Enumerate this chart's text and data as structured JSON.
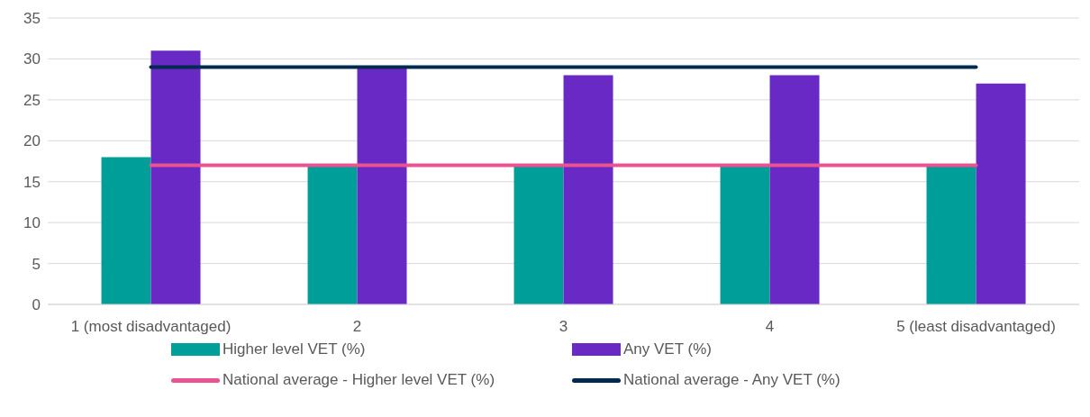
{
  "chart_data": {
    "type": "bar",
    "categories": [
      "1 (most disadvantaged)",
      "2",
      "3",
      "4",
      "5 (least disadvantaged)"
    ],
    "series": [
      {
        "name": "Higher level VET (%)",
        "color": "#009e99",
        "values": [
          18,
          17,
          17,
          17,
          17
        ]
      },
      {
        "name": "Any VET (%)",
        "color": "#6829c4",
        "values": [
          31,
          29,
          28,
          28,
          27
        ]
      },
      {
        "name": "National average - Higher level VET (%)",
        "type": "line",
        "color": "#ea5290",
        "values": [
          17,
          17,
          17,
          17,
          17
        ]
      },
      {
        "name": "National average - Any VET (%)",
        "type": "line",
        "color": "#002b4f",
        "values": [
          29,
          29,
          29,
          29,
          29
        ]
      }
    ],
    "ylim": [
      0,
      35
    ],
    "yticks": [
      0,
      5,
      10,
      15,
      20,
      25,
      30,
      35
    ],
    "grid": "y",
    "legend": "bottom",
    "marker": "none",
    "line_style": "solid"
  }
}
